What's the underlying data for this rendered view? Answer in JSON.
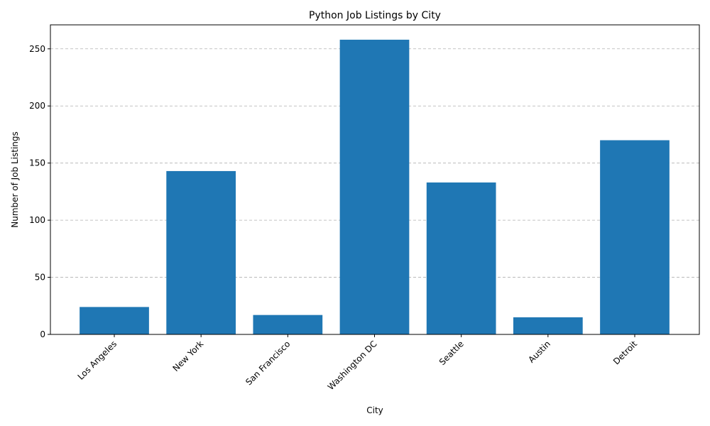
{
  "chart_data": {
    "type": "bar",
    "title": "Python Job Listings by City",
    "xlabel": "City",
    "ylabel": "Number of Job Listings",
    "categories": [
      "Los Angeles",
      "New York",
      "San Francisco",
      "Washington DC",
      "Seattle",
      "Austin",
      "Detroit"
    ],
    "values": [
      24,
      143,
      17,
      258,
      133,
      15,
      170
    ],
    "ylim": [
      0,
      271
    ],
    "yticks": [
      0,
      50,
      100,
      150,
      200,
      250
    ],
    "grid": "y-dashed",
    "bar_color": "#1f77b4",
    "x_tick_rotation": "45"
  }
}
